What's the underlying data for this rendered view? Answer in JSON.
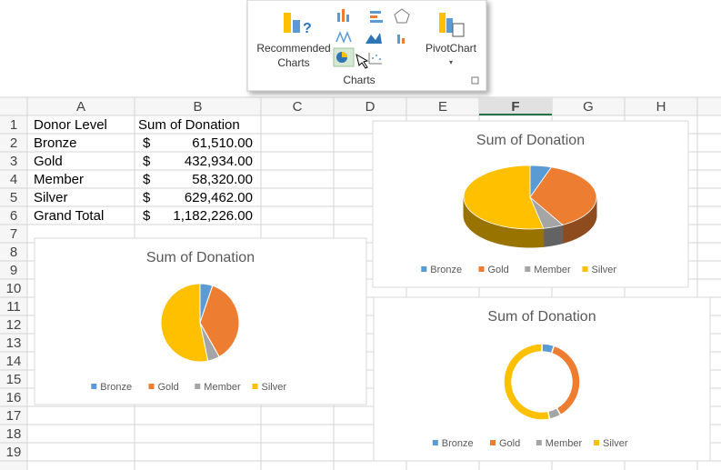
{
  "ribbon": {
    "recommended": [
      "Recommended",
      "Charts"
    ],
    "pivot": "PivotChart",
    "group": "Charts"
  },
  "sheet": {
    "columns": [
      "A",
      "B",
      "C",
      "D",
      "E",
      "F",
      "G",
      "H"
    ],
    "selected_column": "F",
    "row_numbers": [
      "1",
      "2",
      "3",
      "4",
      "5",
      "6",
      "7",
      "8",
      "9",
      "10",
      "11",
      "12",
      "13",
      "14",
      "15",
      "16",
      "17",
      "18",
      "19"
    ],
    "rows": [
      {
        "label": "Donor Level",
        "header": "Sum of Donation"
      },
      {
        "label": "Bronze",
        "currency": "$",
        "amount": "61,510.00"
      },
      {
        "label": "Gold",
        "currency": "$",
        "amount": "432,934.00"
      },
      {
        "label": "Member",
        "currency": "$",
        "amount": "58,320.00"
      },
      {
        "label": "Silver",
        "currency": "$",
        "amount": "629,462.00"
      },
      {
        "label": "Grand Total",
        "currency": "$",
        "amount": "1,182,226.00"
      }
    ]
  },
  "chart_data": [
    {
      "type": "pie",
      "title": "Sum of Donation",
      "categories": [
        "Bronze",
        "Gold",
        "Member",
        "Silver"
      ],
      "values": [
        61510,
        432934,
        58320,
        629462
      ],
      "colors": [
        "#5b9bd5",
        "#ed7d31",
        "#a5a5a5",
        "#ffc000"
      ]
    },
    {
      "type": "pie3d",
      "title": "Sum of Donation",
      "categories": [
        "Bronze",
        "Gold",
        "Member",
        "Silver"
      ],
      "values": [
        61510,
        432934,
        58320,
        629462
      ],
      "colors": [
        "#5b9bd5",
        "#ed7d31",
        "#a5a5a5",
        "#ffc000"
      ]
    },
    {
      "type": "doughnut",
      "title": "Sum of Donation",
      "categories": [
        "Bronze",
        "Gold",
        "Member",
        "Silver"
      ],
      "values": [
        61510,
        432934,
        58320,
        629462
      ],
      "colors": [
        "#5b9bd5",
        "#ed7d31",
        "#a5a5a5",
        "#ffc000"
      ]
    }
  ]
}
